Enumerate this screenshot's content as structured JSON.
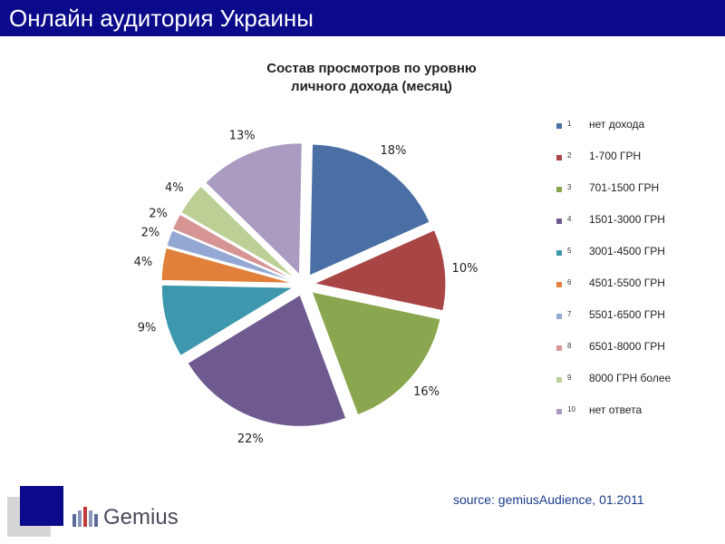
{
  "header": {
    "title": "Онлайн аудитория Украины"
  },
  "chart_data": {
    "type": "pie",
    "title": "Состав просмотров  по уровню личного дохода  (месяц)",
    "title_lines": [
      "Состав просмотров  по уровню",
      "личного дохода  (месяц)"
    ],
    "legend_position": "right",
    "slices": [
      {
        "index": "1",
        "label": "нет дохода",
        "value": 18,
        "value_label": "18%",
        "color": "#4a6fa5"
      },
      {
        "index": "2",
        "label": "1-700 ГРН",
        "value": 10,
        "value_label": "10%",
        "color": "#a84545"
      },
      {
        "index": "3",
        "label": "701-1500 ГРН",
        "value": 16,
        "value_label": "16%",
        "color": "#8aa64e"
      },
      {
        "index": "4",
        "label": "1501-3000 ГРН",
        "value": 22,
        "value_label": "22%",
        "color": "#6f5a8f"
      },
      {
        "index": "5",
        "label": "3001-4500 ГРН",
        "value": 9,
        "value_label": "9%",
        "color": "#3e98ad"
      },
      {
        "index": "6",
        "label": "4501-5500 ГРН",
        "value": 4,
        "value_label": "4%",
        "color": "#e0803a"
      },
      {
        "index": "7",
        "label": "5501-6500 ГРН",
        "value": 2,
        "value_label": "2%",
        "color": "#93a9d4"
      },
      {
        "index": "8",
        "label": "6501-8000 ГРН",
        "value": 2,
        "value_label": "2%",
        "color": "#d69494"
      },
      {
        "index": "9",
        "label": "8000  ГРН более",
        "value": 4,
        "value_label": "4%",
        "color": "#bccf94"
      },
      {
        "index": "10",
        "label": "нет ответа",
        "value": 13,
        "value_label": "13%",
        "color": "#a99cc0"
      }
    ]
  },
  "footer": {
    "logo_text": "Gemius",
    "source": "source: gemiusAudience, 01.2011",
    "brand_color": "#0b0a8a"
  }
}
